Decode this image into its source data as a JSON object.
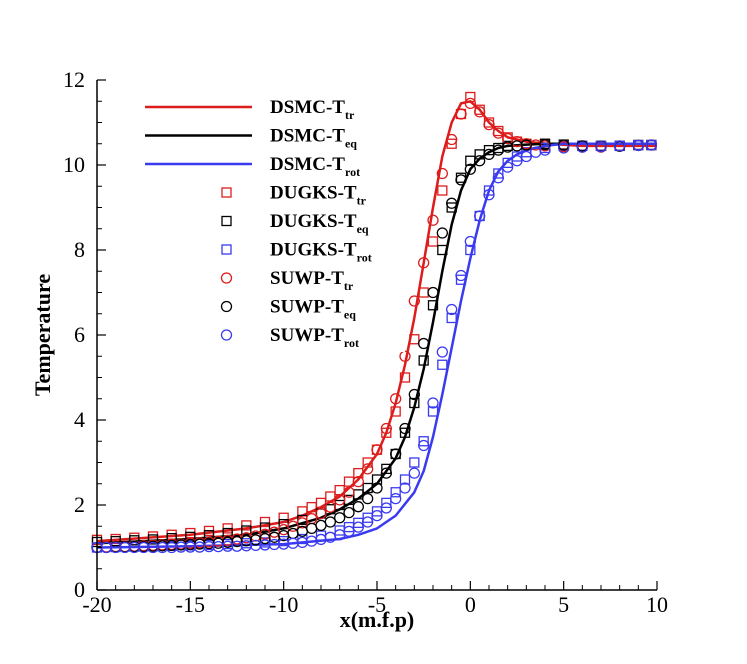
{
  "chart_data": {
    "type": "line",
    "xlabel": "x(m.f.p)",
    "ylabel": "Temperature",
    "xlim": [
      -20,
      10
    ],
    "ylim": [
      0,
      12
    ],
    "xticks": [
      -20,
      -15,
      -10,
      -5,
      0,
      5,
      10
    ],
    "yticks": [
      0,
      2,
      4,
      6,
      8,
      10,
      12
    ],
    "legend_position": "top-left",
    "colors": {
      "tr": "#dd1c1c",
      "eq": "#000000",
      "rot": "#3a3af0"
    },
    "series": [
      {
        "name": "DSMC-T",
        "sub": "tr",
        "kind": "line",
        "color": "#dd1c1c",
        "x": [
          -20,
          -15,
          -12,
          -10,
          -9,
          -8,
          -7,
          -6,
          -5,
          -4.5,
          -4,
          -3.5,
          -3,
          -2.5,
          -2,
          -1.5,
          -1,
          -0.5,
          0,
          0.5,
          1,
          1.5,
          2,
          3,
          4,
          6,
          8,
          10
        ],
        "y": [
          1.15,
          1.3,
          1.45,
          1.6,
          1.75,
          1.95,
          2.2,
          2.6,
          3.2,
          3.7,
          4.4,
          5.3,
          6.4,
          7.7,
          9.0,
          10.2,
          11.0,
          11.45,
          11.5,
          11.3,
          11.0,
          10.8,
          10.65,
          10.55,
          10.5,
          10.45,
          10.45,
          10.45
        ]
      },
      {
        "name": "DSMC-T",
        "sub": "eq",
        "kind": "line",
        "color": "#000000",
        "x": [
          -20,
          -15,
          -12,
          -10,
          -8,
          -7,
          -6,
          -5,
          -4,
          -3.5,
          -3,
          -2.5,
          -2,
          -1.5,
          -1,
          -0.5,
          0,
          0.5,
          1,
          1.5,
          2,
          3,
          4,
          6,
          8,
          10
        ],
        "y": [
          1.1,
          1.2,
          1.3,
          1.45,
          1.7,
          1.9,
          2.15,
          2.5,
          3.1,
          3.6,
          4.3,
          5.2,
          6.3,
          7.5,
          8.6,
          9.4,
          9.9,
          10.15,
          10.3,
          10.4,
          10.45,
          10.48,
          10.5,
          10.5,
          10.5,
          10.5
        ]
      },
      {
        "name": "DSMC-T",
        "sub": "rot",
        "kind": "line",
        "color": "#3a3af0",
        "x": [
          -20,
          -15,
          -10,
          -7,
          -6,
          -5,
          -4,
          -3,
          -2.5,
          -2,
          -1.5,
          -1,
          -0.5,
          0,
          0.5,
          1,
          1.5,
          2,
          2.5,
          3,
          4,
          5,
          6,
          8,
          10
        ],
        "y": [
          1.0,
          1.03,
          1.08,
          1.2,
          1.3,
          1.45,
          1.75,
          2.3,
          2.8,
          3.6,
          4.6,
          5.7,
          6.8,
          7.8,
          8.7,
          9.4,
          9.85,
          10.1,
          10.25,
          10.35,
          10.45,
          10.5,
          10.5,
          10.5,
          10.5
        ]
      },
      {
        "name": "DUGKS-T",
        "sub": "tr",
        "kind": "square",
        "color": "#dd1c1c",
        "x": [
          -20,
          -19,
          -18,
          -17,
          -16,
          -15,
          -14,
          -13,
          -12,
          -11,
          -10,
          -9,
          -8.5,
          -8,
          -7.5,
          -7,
          -6.5,
          -6,
          -5.5,
          -5,
          -4.5,
          -4,
          -3.5,
          -3,
          -2.5,
          -2,
          -1.5,
          -1,
          -0.5,
          0,
          0.5,
          1,
          1.5,
          2,
          2.5,
          3,
          4,
          5,
          6,
          7,
          8,
          9,
          9.7
        ],
        "y": [
          1.18,
          1.2,
          1.23,
          1.26,
          1.3,
          1.34,
          1.39,
          1.45,
          1.52,
          1.6,
          1.7,
          1.85,
          1.95,
          2.05,
          2.2,
          2.35,
          2.55,
          2.75,
          3.0,
          3.3,
          3.7,
          4.2,
          5.0,
          5.9,
          7.0,
          8.2,
          9.4,
          10.5,
          11.2,
          11.6,
          11.3,
          11.0,
          10.8,
          10.65,
          10.55,
          10.5,
          10.5,
          10.48,
          10.45,
          10.45,
          10.45,
          10.47,
          10.47
        ]
      },
      {
        "name": "DUGKS-T",
        "sub": "eq",
        "kind": "square",
        "color": "#000000",
        "x": [
          -20,
          -19,
          -18,
          -17,
          -16,
          -15,
          -14,
          -13,
          -12,
          -11,
          -10,
          -9,
          -8,
          -7.5,
          -7,
          -6.5,
          -6,
          -5.5,
          -5,
          -4.5,
          -4,
          -3.5,
          -3,
          -2.5,
          -2,
          -1.5,
          -1,
          -0.5,
          0,
          0.5,
          1,
          1.5,
          2,
          3,
          4,
          5,
          6,
          7,
          8,
          9,
          9.7
        ],
        "y": [
          1.13,
          1.15,
          1.17,
          1.19,
          1.22,
          1.25,
          1.29,
          1.34,
          1.4,
          1.47,
          1.55,
          1.65,
          1.8,
          1.9,
          2.0,
          2.12,
          2.25,
          2.4,
          2.6,
          2.85,
          3.2,
          3.7,
          4.4,
          5.4,
          6.7,
          8.0,
          9.0,
          9.7,
          10.1,
          10.25,
          10.35,
          10.4,
          10.45,
          10.48,
          10.5,
          10.48,
          10.45,
          10.45,
          10.45,
          10.47,
          10.47
        ]
      },
      {
        "name": "DUGKS-T",
        "sub": "rot",
        "kind": "square",
        "color": "#3a3af0",
        "x": [
          -20,
          -19,
          -18,
          -17,
          -16,
          -15,
          -14,
          -13,
          -12,
          -11,
          -10,
          -9,
          -8,
          -7,
          -6.5,
          -6,
          -5.5,
          -5,
          -4.5,
          -4,
          -3.5,
          -3,
          -2.5,
          -2,
          -1.5,
          -1,
          -0.5,
          0,
          0.5,
          1,
          1.5,
          2,
          2.5,
          3,
          4,
          5,
          6,
          7,
          8,
          9,
          9.7
        ],
        "y": [
          1.0,
          1.01,
          1.02,
          1.03,
          1.04,
          1.05,
          1.06,
          1.08,
          1.1,
          1.12,
          1.15,
          1.2,
          1.28,
          1.4,
          1.48,
          1.58,
          1.7,
          1.85,
          2.05,
          2.3,
          2.6,
          3.0,
          3.5,
          4.2,
          5.3,
          6.4,
          7.3,
          8.0,
          8.8,
          9.4,
          9.8,
          10.05,
          10.2,
          10.3,
          10.4,
          10.45,
          10.45,
          10.45,
          10.45,
          10.47,
          10.47
        ]
      },
      {
        "name": "SUWP-T",
        "sub": "tr",
        "kind": "circle",
        "color": "#dd1c1c",
        "x": [
          -20,
          -19.5,
          -19,
          -18.5,
          -18,
          -17.5,
          -17,
          -16.5,
          -16,
          -15.5,
          -15,
          -14.5,
          -14,
          -13.5,
          -13,
          -12.5,
          -12,
          -11.5,
          -11,
          -10.5,
          -10,
          -9.5,
          -9,
          -8.5,
          -8,
          -7.5,
          -7,
          -6.5,
          -6,
          -5.5,
          -5,
          -4.5,
          -4,
          -3.5,
          -3,
          -2.5,
          -2,
          -1.5,
          -1,
          -0.5,
          0,
          0.5,
          1,
          1.5,
          2,
          2.5,
          3,
          3.5,
          4,
          5,
          6,
          7,
          8,
          9,
          9.7
        ],
        "y": [
          1.0,
          1.01,
          1.02,
          1.02,
          1.03,
          1.04,
          1.05,
          1.06,
          1.07,
          1.08,
          1.1,
          1.11,
          1.13,
          1.15,
          1.17,
          1.2,
          1.23,
          1.27,
          1.31,
          1.36,
          1.42,
          1.5,
          1.58,
          1.68,
          1.8,
          1.95,
          2.12,
          2.3,
          2.55,
          2.85,
          3.3,
          3.8,
          4.5,
          5.5,
          6.8,
          7.7,
          8.7,
          9.8,
          10.6,
          11.2,
          11.45,
          11.25,
          10.95,
          10.75,
          10.62,
          10.55,
          10.5,
          10.47,
          10.45,
          10.43,
          10.42,
          10.42,
          10.44,
          10.46,
          10.47
        ]
      },
      {
        "name": "SUWP-T",
        "sub": "eq",
        "kind": "circle",
        "color": "#000000",
        "x": [
          -20,
          -19.5,
          -19,
          -18.5,
          -18,
          -17.5,
          -17,
          -16.5,
          -16,
          -15.5,
          -15,
          -14.5,
          -14,
          -13.5,
          -13,
          -12.5,
          -12,
          -11.5,
          -11,
          -10.5,
          -10,
          -9.5,
          -9,
          -8.5,
          -8,
          -7.5,
          -7,
          -6.5,
          -6,
          -5.5,
          -5,
          -4.5,
          -4,
          -3.5,
          -3,
          -2.5,
          -2,
          -1.5,
          -1,
          -0.5,
          0,
          0.5,
          1,
          1.5,
          2,
          2.5,
          3,
          4,
          5,
          6,
          7,
          8,
          9,
          9.7
        ],
        "y": [
          1.0,
          1.0,
          1.01,
          1.01,
          1.02,
          1.02,
          1.03,
          1.04,
          1.05,
          1.06,
          1.07,
          1.08,
          1.09,
          1.1,
          1.12,
          1.14,
          1.16,
          1.18,
          1.21,
          1.24,
          1.28,
          1.33,
          1.38,
          1.45,
          1.52,
          1.6,
          1.7,
          1.82,
          1.96,
          2.15,
          2.4,
          2.75,
          3.2,
          3.8,
          4.6,
          5.8,
          7.0,
          8.4,
          9.1,
          9.65,
          9.9,
          10.1,
          10.25,
          10.35,
          10.42,
          10.45,
          10.47,
          10.48,
          10.47,
          10.45,
          10.44,
          10.44,
          10.46,
          10.47
        ]
      },
      {
        "name": "SUWP-T",
        "sub": "rot",
        "kind": "circle",
        "color": "#3a3af0",
        "x": [
          -20,
          -19.5,
          -19,
          -18.5,
          -18,
          -17.5,
          -17,
          -16.5,
          -16,
          -15.5,
          -15,
          -14.5,
          -14,
          -13.5,
          -13,
          -12.5,
          -12,
          -11.5,
          -11,
          -10.5,
          -10,
          -9.5,
          -9,
          -8.5,
          -8,
          -7.5,
          -7,
          -6.5,
          -6,
          -5.5,
          -5,
          -4.5,
          -4,
          -3.5,
          -3,
          -2.5,
          -2,
          -1.5,
          -1,
          -0.5,
          0,
          0.5,
          1,
          1.5,
          2,
          2.5,
          3,
          3.5,
          4,
          5,
          6,
          7,
          8,
          9,
          9.7
        ],
        "y": [
          1.0,
          1.0,
          1.0,
          1.0,
          1.0,
          1.0,
          1.0,
          1.0,
          1.0,
          1.01,
          1.01,
          1.01,
          1.02,
          1.02,
          1.03,
          1.03,
          1.04,
          1.05,
          1.06,
          1.07,
          1.08,
          1.1,
          1.12,
          1.15,
          1.19,
          1.24,
          1.3,
          1.38,
          1.48,
          1.6,
          1.75,
          1.93,
          2.15,
          2.4,
          2.75,
          3.4,
          4.4,
          5.6,
          6.6,
          7.4,
          8.2,
          8.8,
          9.3,
          9.7,
          9.95,
          10.1,
          10.2,
          10.3,
          10.35,
          10.4,
          10.42,
          10.43,
          10.45,
          10.46,
          10.47
        ]
      }
    ]
  }
}
